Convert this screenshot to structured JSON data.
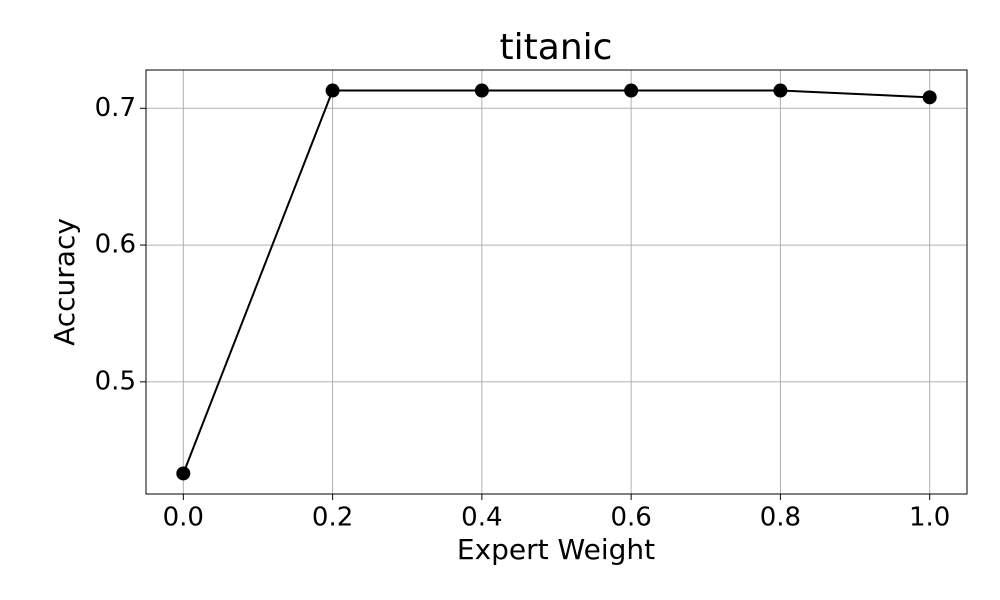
{
  "chart_data": {
    "type": "line",
    "title": "titanic",
    "x_label": "Expert Weight",
    "y_label": "Accuracy",
    "x": [
      0.0,
      0.2,
      0.4,
      0.6,
      0.8,
      1.0
    ],
    "series": [
      {
        "name": "Accuracy",
        "color": "#000000",
        "values": [
          0.433,
          0.713,
          0.713,
          0.713,
          0.713,
          0.708
        ]
      }
    ],
    "xlim": [
      -0.05,
      1.05
    ],
    "ylim": [
      0.418,
      0.728
    ],
    "xticks": [
      {
        "value": 0,
        "label": "0.0"
      },
      0.2,
      0.4,
      0.6,
      0.8,
      {
        "value": 1,
        "label": "1.0"
      }
    ],
    "yticks": [
      0.5,
      0.6,
      0.7
    ],
    "grid": true,
    "marker": "circle"
  }
}
